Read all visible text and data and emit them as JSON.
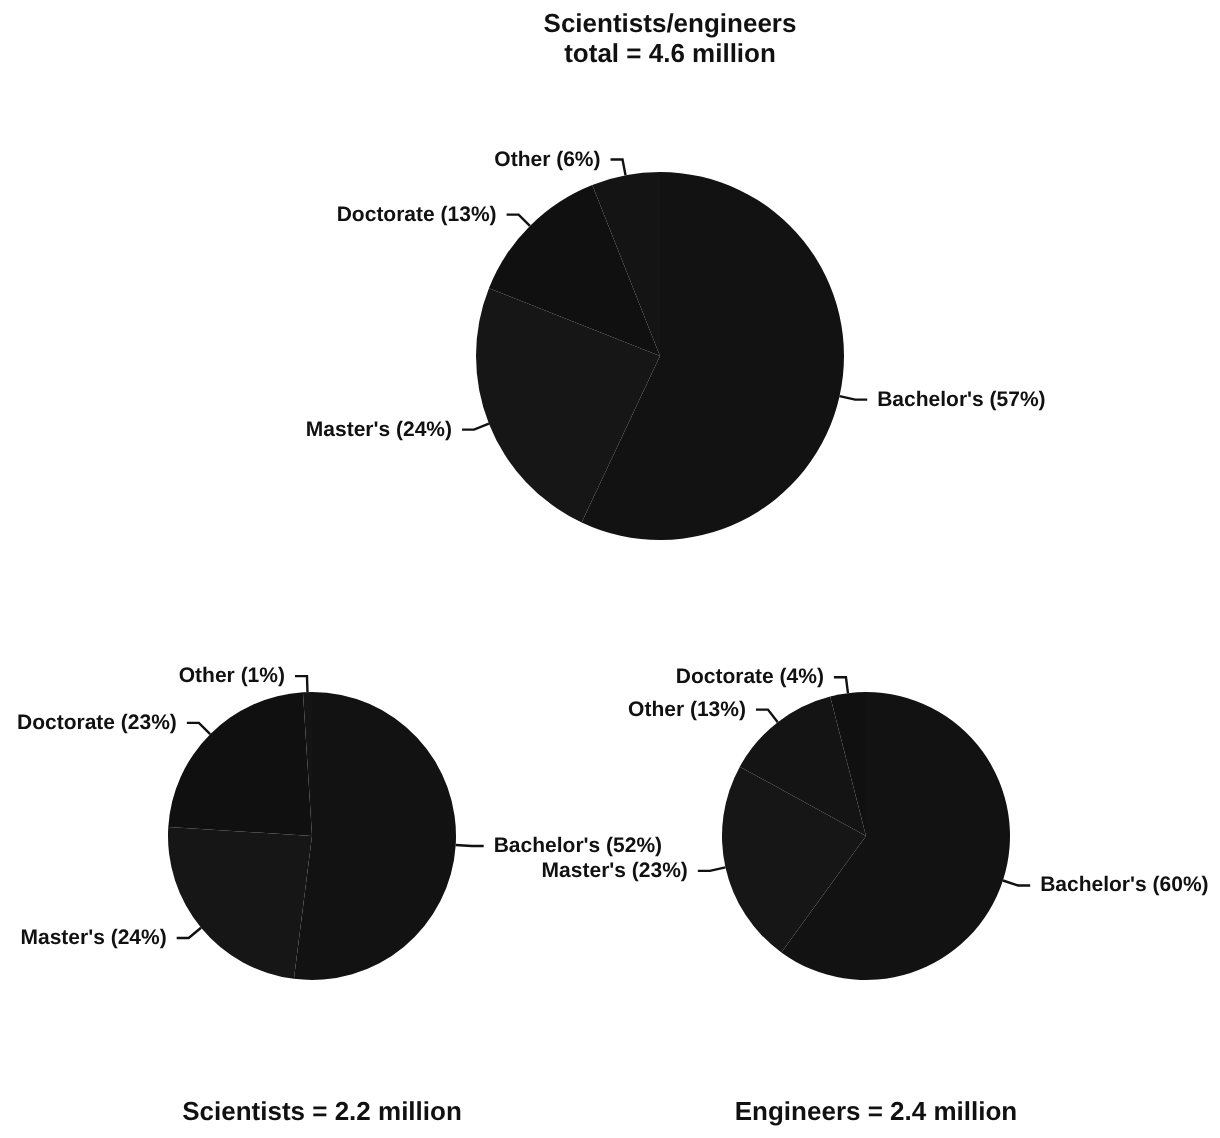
{
  "chart_data": [
    {
      "type": "pie",
      "title": "Scientists/engineers",
      "subtitle": "total = 4.6 million",
      "categories": [
        "Bachelor's (57%)",
        "Master's (24%)",
        "Doctorate (13%)",
        "Other (6%)"
      ],
      "values": [
        57,
        24,
        13,
        6
      ],
      "colors": [
        "#121212",
        "#161616",
        "#101010",
        "#141414"
      ]
    },
    {
      "type": "pie",
      "title": "Scientists = 2.2 million",
      "categories": [
        "Bachelor's (52%)",
        "Master's (24%)",
        "Doctorate (23%)",
        "Other (1%)"
      ],
      "values": [
        52,
        24,
        23,
        1
      ],
      "colors": [
        "#121212",
        "#161616",
        "#101010",
        "#141414"
      ]
    },
    {
      "type": "pie",
      "title": "Engineers = 2.4 million",
      "categories": [
        "Bachelor's (60%)",
        "Master's (23%)",
        "Other (13%)",
        "Doctorate (4%)"
      ],
      "values": [
        60,
        23,
        13,
        4
      ],
      "colors": [
        "#121212",
        "#161616",
        "#141414",
        "#101010"
      ]
    }
  ]
}
